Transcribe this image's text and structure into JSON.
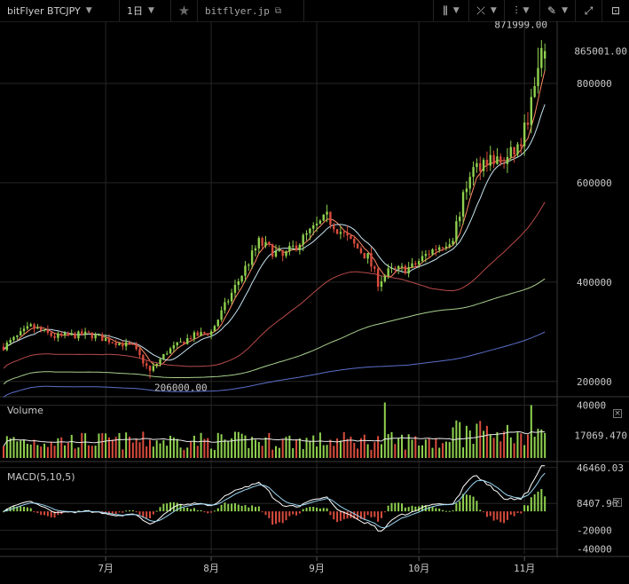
{
  "toolbar": {
    "symbol": "bitFlyer BTCJPY",
    "interval": "1日",
    "site": "bitflyer.jp"
  },
  "price_pane": {
    "last_price": "865001.00",
    "high_label": "871999.00",
    "low_label": "206000.00",
    "ticks": [
      {
        "label": "800000",
        "value": 800000
      },
      {
        "label": "600000",
        "value": 600000
      },
      {
        "label": "400000",
        "value": 400000
      },
      {
        "label": "200000",
        "value": 200000
      }
    ],
    "range": [
      180000,
      925000
    ],
    "high_value": 871999,
    "low_value": 206000
  },
  "volume_pane": {
    "title": "Volume",
    "ticks": [
      {
        "label": "40000",
        "value": 40000
      }
    ],
    "current_label": "17069.470",
    "current_value": 17069.47,
    "range": [
      0,
      43000
    ]
  },
  "macd_pane": {
    "title": "MACD(5,10,5)",
    "ticks": [
      {
        "label": "46460.03",
        "value": 46460.03
      },
      {
        "label": "8407.96",
        "value": 8407.96
      },
      {
        "label": "-20000",
        "value": -20000
      },
      {
        "label": "-40000",
        "value": -40000
      }
    ],
    "range": [
      -45000,
      50000
    ]
  },
  "x_axis": {
    "ticks": [
      {
        "label": "7月",
        "day": 30
      },
      {
        "label": "8月",
        "day": 61
      },
      {
        "label": "9月",
        "day": 92
      },
      {
        "label": "10月",
        "day": 122
      },
      {
        "label": "11月",
        "day": 153
      }
    ],
    "total_days": 160
  },
  "colors": {
    "up": "#8fd14f",
    "down": "#d94c3d",
    "ma_fast": "#ff8a65",
    "ma_mid": "#c8e4f0",
    "ma_slow": "#b84a4a",
    "ma_slower": "#a8d08d",
    "ma_slowest": "#5b6fc9",
    "macd_line": "#ffffff",
    "signal_line": "#9ad4f0"
  }
}
